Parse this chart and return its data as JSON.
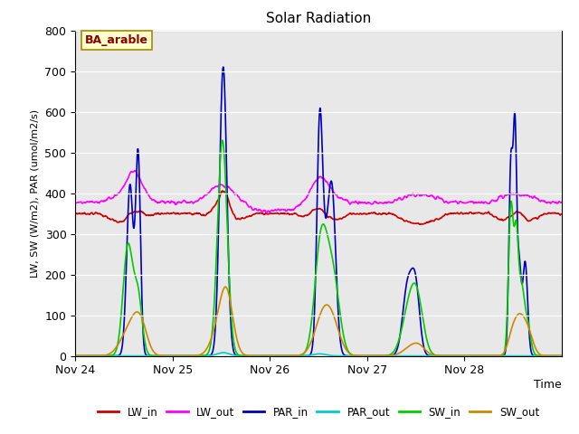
{
  "title": "Solar Radiation",
  "ylabel": "LW, SW (W/m2), PAR (umol/m2/s)",
  "xlabel": "Time",
  "annotation": "BA_arable",
  "ylim": [
    0,
    800
  ],
  "background_color": "#e8e8e8",
  "series": {
    "LW_in": {
      "color": "#cc0000",
      "lw": 1.2
    },
    "LW_out": {
      "color": "#ff00ff",
      "lw": 1.2
    },
    "PAR_in": {
      "color": "#0000bb",
      "lw": 1.2
    },
    "PAR_out": {
      "color": "#00cccc",
      "lw": 1.2
    },
    "SW_in": {
      "color": "#00cc00",
      "lw": 1.2
    },
    "SW_out": {
      "color": "#cc8800",
      "lw": 1.2
    }
  },
  "x_ticks": [
    0,
    24,
    48,
    72,
    96
  ],
  "x_tick_labels": [
    "Nov 24",
    "Nov 25",
    "Nov 26",
    "Nov 27",
    "Nov 28"
  ],
  "n_points": 1200
}
